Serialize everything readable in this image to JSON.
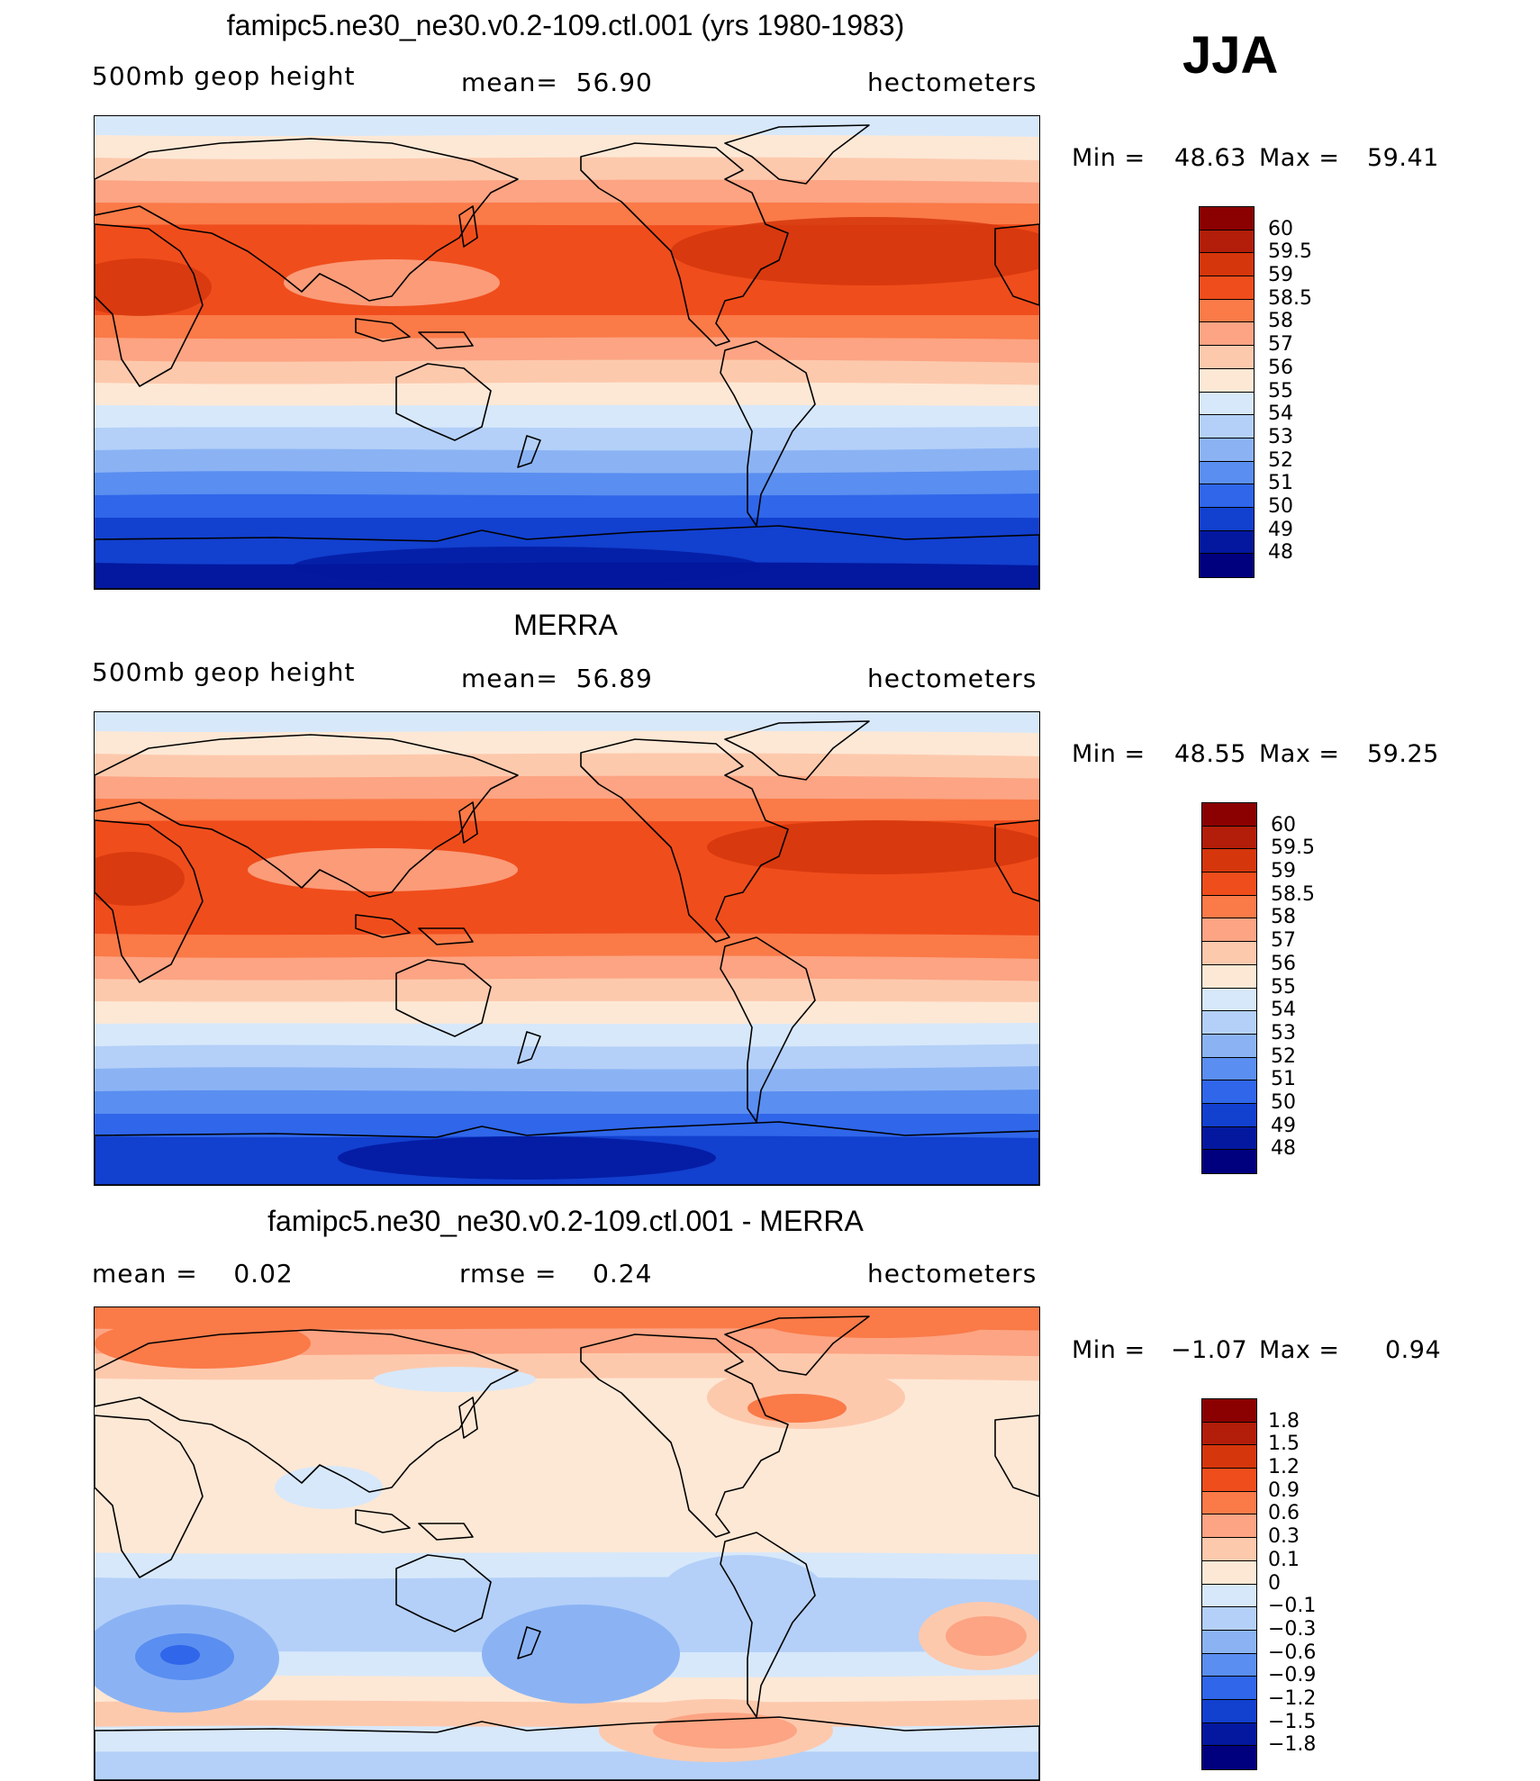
{
  "season": "JJA",
  "panels": [
    {
      "title": "famipc5.ne30_ne30.v0.2-109.ctl.001 (yrs 1980-1983)",
      "left_label": "500mb geop height",
      "mid_label": "mean=  56.90",
      "right_label": "hectometers",
      "min_label": "Min =",
      "min_value": "48.63",
      "max_label": "Max =",
      "max_value": "59.41",
      "colorbar": {
        "labels": [
          "60",
          "59.5",
          "59",
          "58.5",
          "58",
          "57",
          "56",
          "55",
          "54",
          "53",
          "52",
          "51",
          "50",
          "49",
          "48"
        ],
        "colors": [
          "#8b0000",
          "#b21e0a",
          "#d5360c",
          "#f04d1c",
          "#fa7a48",
          "#fca483",
          "#fdc9ad",
          "#fde8d5",
          "#d7e8fa",
          "#b4d0f8",
          "#8bb3f4",
          "#5a8ef0",
          "#2f66ea",
          "#1240cf",
          "#03189e",
          "#00007e"
        ]
      }
    },
    {
      "title": "MERRA",
      "left_label": "500mb geop height",
      "mid_label": "mean=  56.89",
      "right_label": "hectometers",
      "min_label": "Min =",
      "min_value": "48.55",
      "max_label": "Max =",
      "max_value": "59.25",
      "colorbar": {
        "labels": [
          "60",
          "59.5",
          "59",
          "58.5",
          "58",
          "57",
          "56",
          "55",
          "54",
          "53",
          "52",
          "51",
          "50",
          "49",
          "48"
        ],
        "colors": [
          "#8b0000",
          "#b21e0a",
          "#d5360c",
          "#f04d1c",
          "#fa7a48",
          "#fca483",
          "#fdc9ad",
          "#fde8d5",
          "#d7e8fa",
          "#b4d0f8",
          "#8bb3f4",
          "#5a8ef0",
          "#2f66ea",
          "#1240cf",
          "#03189e",
          "#00007e"
        ]
      }
    },
    {
      "title": "famipc5.ne30_ne30.v0.2-109.ctl.001 - MERRA",
      "left_label": "mean =    0.02",
      "mid_label": "rmse =    0.24",
      "right_label": "hectometers",
      "min_label": "Min =",
      "min_value": "−1.07",
      "max_label": "Max =",
      "max_value": "0.94",
      "colorbar": {
        "labels": [
          "1.8",
          "1.5",
          "1.2",
          "0.9",
          "0.6",
          "0.3",
          "0.1",
          "0",
          "−0.1",
          "−0.3",
          "−0.6",
          "−0.9",
          "−1.2",
          "−1.5",
          "−1.8"
        ],
        "colors": [
          "#8b0000",
          "#b21e0a",
          "#d5360c",
          "#f04d1c",
          "#fa7a48",
          "#fca483",
          "#fdc9ad",
          "#fde8d5",
          "#d7e8fa",
          "#b4d0f8",
          "#8bb3f4",
          "#5a8ef0",
          "#2f66ea",
          "#1240cf",
          "#03189e",
          "#00007e"
        ]
      }
    }
  ],
  "map_fields": [
    {
      "lat_bands": [
        "#d7e8fa",
        "#fde8d5",
        "#fdc9ad",
        "#fca483",
        "#fa7a48",
        "#f04d1c",
        "#f04d1c",
        "#f04d1c",
        "#f04d1c",
        "#fa7a48",
        "#fca483",
        "#fdc9ad",
        "#fde8d5",
        "#d7e8fa",
        "#b4d0f8",
        "#8bb3f4",
        "#5a8ef0",
        "#2f66ea",
        "#1240cf",
        "#1240cf",
        "#03189e"
      ]
    },
    {
      "lat_bands": [
        "#d7e8fa",
        "#fde8d5",
        "#fdc9ad",
        "#fca483",
        "#fa7a48",
        "#f04d1c",
        "#f04d1c",
        "#f04d1c",
        "#f04d1c",
        "#f04d1c",
        "#fa7a48",
        "#fca483",
        "#fdc9ad",
        "#fde8d5",
        "#d7e8fa",
        "#b4d0f8",
        "#8bb3f4",
        "#5a8ef0",
        "#2f66ea",
        "#1240cf",
        "#1240cf"
      ]
    },
    {
      "lat_bands": [
        "#fa7a48",
        "#fca483",
        "#fdc9ad",
        "#fde8d5",
        "#fde8d5",
        "#fde8d5",
        "#fde8d5",
        "#fde8d5",
        "#fde8d5",
        "#fde8d5",
        "#d7e8fa",
        "#b4d0f8",
        "#b4d0f8",
        "#b4d0f8",
        "#d7e8fa",
        "#fde8d5",
        "#fdc9ad",
        "#d7e8fa",
        "#b4d0f8"
      ]
    }
  ]
}
